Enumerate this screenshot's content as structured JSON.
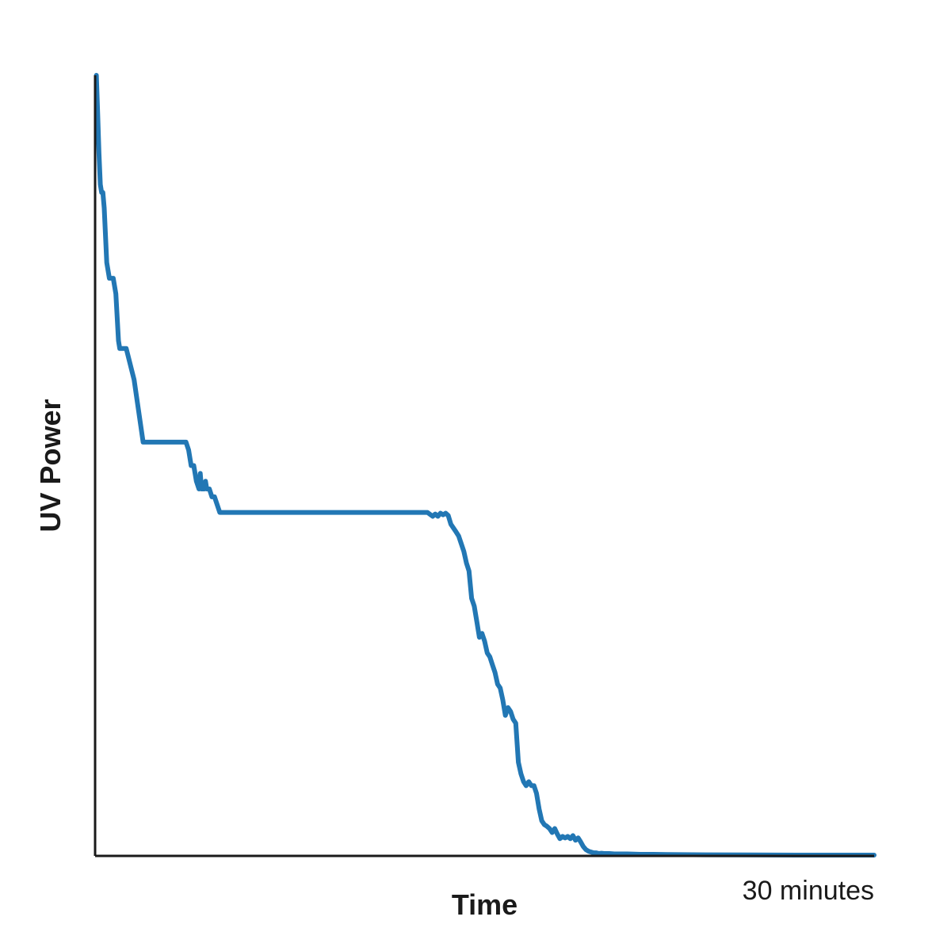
{
  "chart_data": {
    "type": "line",
    "title": "",
    "xlabel": "Time",
    "ylabel": "UV Power",
    "x_end_label": "30 minutes",
    "xlim": [
      0,
      30
    ],
    "ylim": [
      0,
      100
    ],
    "grid": false,
    "legend": "none",
    "series": [
      {
        "color": "#2277b4",
        "x": [
          0.05,
          0.1,
          0.15,
          0.2,
          0.25,
          0.3,
          0.35,
          0.45,
          0.55,
          0.6,
          0.7,
          0.8,
          0.9,
          0.95,
          1.0,
          1.05,
          1.2,
          1.5,
          1.85,
          2.0,
          2.3,
          2.8,
          3.5,
          3.6,
          3.7,
          3.75,
          3.8,
          3.9,
          4.0,
          4.05,
          4.1,
          4.2,
          4.25,
          4.3,
          4.35,
          4.4,
          4.5,
          4.6,
          4.8,
          5.0,
          5.1,
          5.2,
          5.4,
          5.6,
          6.0,
          8.0,
          10.0,
          12.0,
          12.5,
          12.8,
          13.0,
          13.1,
          13.2,
          13.3,
          13.4,
          13.5,
          13.6,
          13.7,
          13.8,
          13.9,
          14.0,
          14.1,
          14.2,
          14.3,
          14.4,
          14.5,
          14.6,
          14.7,
          14.8,
          14.9,
          15.0,
          15.1,
          15.2,
          15.3,
          15.4,
          15.5,
          15.6,
          15.7,
          15.8,
          15.9,
          16.0,
          16.1,
          16.2,
          16.3,
          16.4,
          16.5,
          16.6,
          16.7,
          16.8,
          16.9,
          17.0,
          17.1,
          17.2,
          17.3,
          17.4,
          17.5,
          17.6,
          17.7,
          17.8,
          17.9,
          18.0,
          18.1,
          18.2,
          18.3,
          18.4,
          18.5,
          18.6,
          18.7,
          18.8,
          18.9,
          19.0,
          19.1,
          19.2,
          19.3,
          19.4,
          19.5,
          19.6,
          19.8,
          20.0,
          20.5,
          21.0,
          21.5,
          22.0,
          23.0,
          25.0,
          27.0,
          30.0
        ],
        "y": [
          100,
          95,
          90,
          86,
          85,
          85,
          83,
          76,
          74,
          74,
          74,
          72,
          66,
          65,
          65,
          65,
          65,
          61,
          53,
          53,
          53,
          53,
          53,
          52,
          50,
          50,
          50,
          48,
          47,
          49,
          47,
          47,
          48,
          47,
          47,
          47,
          46,
          46,
          44,
          44,
          44,
          44,
          44,
          44,
          44,
          44,
          44,
          44,
          44,
          44,
          43.5,
          43.8,
          43.5,
          43.9,
          43.7,
          43.9,
          43.6,
          42.5,
          42.0,
          41.5,
          41.0,
          40.0,
          39.0,
          37.5,
          36.5,
          33.0,
          32.0,
          30.0,
          28.0,
          28.5,
          27.5,
          26.0,
          25.5,
          24.5,
          23.5,
          22.0,
          21.5,
          20.0,
          18.0,
          19.0,
          18.5,
          17.5,
          17.0,
          12.0,
          10.5,
          9.5,
          9.0,
          9.5,
          9.0,
          9.0,
          8.0,
          6.0,
          4.5,
          4.0,
          3.8,
          3.5,
          3.0,
          3.5,
          2.8,
          2.2,
          2.5,
          2.3,
          2.5,
          2.2,
          2.6,
          2.0,
          2.3,
          1.8,
          1.2,
          0.8,
          0.6,
          0.5,
          0.4,
          0.4,
          0.3,
          0.35,
          0.3,
          0.3,
          0.25,
          0.25,
          0.2,
          0.2,
          0.18,
          0.15,
          0.12,
          0.1,
          0.1
        ]
      }
    ]
  }
}
